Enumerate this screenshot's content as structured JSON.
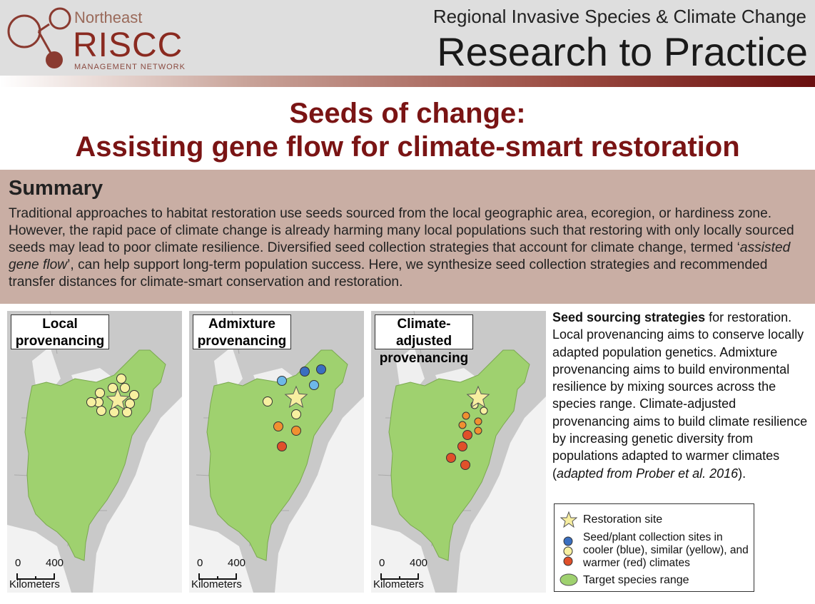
{
  "header": {
    "org_region": "Northeast",
    "org_name": "RISCC",
    "org_sub": "MANAGEMENT NETWORK",
    "tagline": "Regional Invasive Species & Climate Change",
    "banner": "Research to Practice"
  },
  "title": {
    "line1": "Seeds of change:",
    "line2": "Assisting gene flow for climate-smart restoration"
  },
  "summary": {
    "heading": "Summary",
    "text_before": "Traditional approaches to habitat restoration use seeds sourced from the local geographic area, ecoregion, or hardiness zone. However, the rapid pace of climate change is already harming many local populations such that restoring with only locally sourced seeds may lead to poor climate resilience. Diversified seed collection strategies that account for climate change, termed ‘",
    "italic": "assisted gene flow",
    "text_after": "’, can help support long-term population success. Here, we synthesize seed collection strategies and recommended transfer distances for climate-smart conservation and restoration."
  },
  "maps": [
    {
      "label": "Local provenancing"
    },
    {
      "label": "Admixture provenancing"
    },
    {
      "label": "Climate-adjusted provenancing"
    }
  ],
  "scale_bar": {
    "start": "0",
    "end": "400",
    "unit": "Kilometers"
  },
  "caption": {
    "lead": "Seed sourcing strategies",
    "body": " for restoration. Local provenancing aims to conserve locally adapted population genetics. Admixture provenancing aims to build environmental resilience by mixing sources across the species range. Climate-adjusted provenancing aims to build climate resilience by increasing genetic diversity from populations adapted to warmer climates (",
    "citation": "adapted from Prober et al. 2016",
    "closing": ")."
  },
  "legend": {
    "site": "Restoration site",
    "collection": "Seed/plant collection sites in cooler (blue), similar (yellow), and warmer (red) climates",
    "range": "Target species range"
  }
}
